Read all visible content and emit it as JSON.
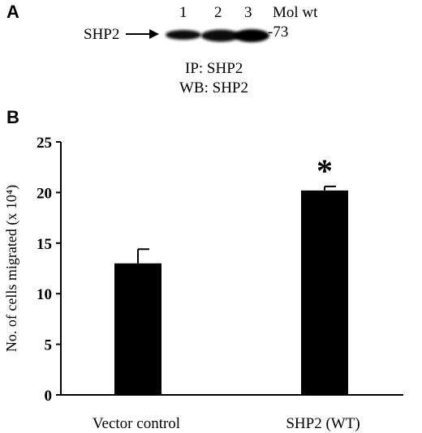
{
  "panel_a": {
    "letter": "A",
    "protein_label": "SHP2",
    "lanes": [
      "1",
      "2",
      "3"
    ],
    "mol_wt_label": "Mol wt",
    "mol_wt_marker": "-73",
    "ip_label": "IP: SHP2",
    "wb_label": "WB: SHP2"
  },
  "panel_b": {
    "letter": "B",
    "significance_marker": "*"
  },
  "chart_data": {
    "type": "bar",
    "categories": [
      "Vector control",
      "SHP2 (WT)"
    ],
    "values": [
      13.0,
      20.2
    ],
    "errors": [
      1.4,
      0.4
    ],
    "title": "",
    "xlabel": "",
    "ylabel": "No. of cells migrated (x 10⁴)",
    "ylim": [
      0,
      25
    ],
    "yticks": [
      0,
      5,
      10,
      15,
      20,
      25
    ],
    "ytick_labels": [
      "0",
      "5",
      "10",
      "15",
      "20",
      "25"
    ],
    "grid": false,
    "bar_color": "#000000"
  }
}
